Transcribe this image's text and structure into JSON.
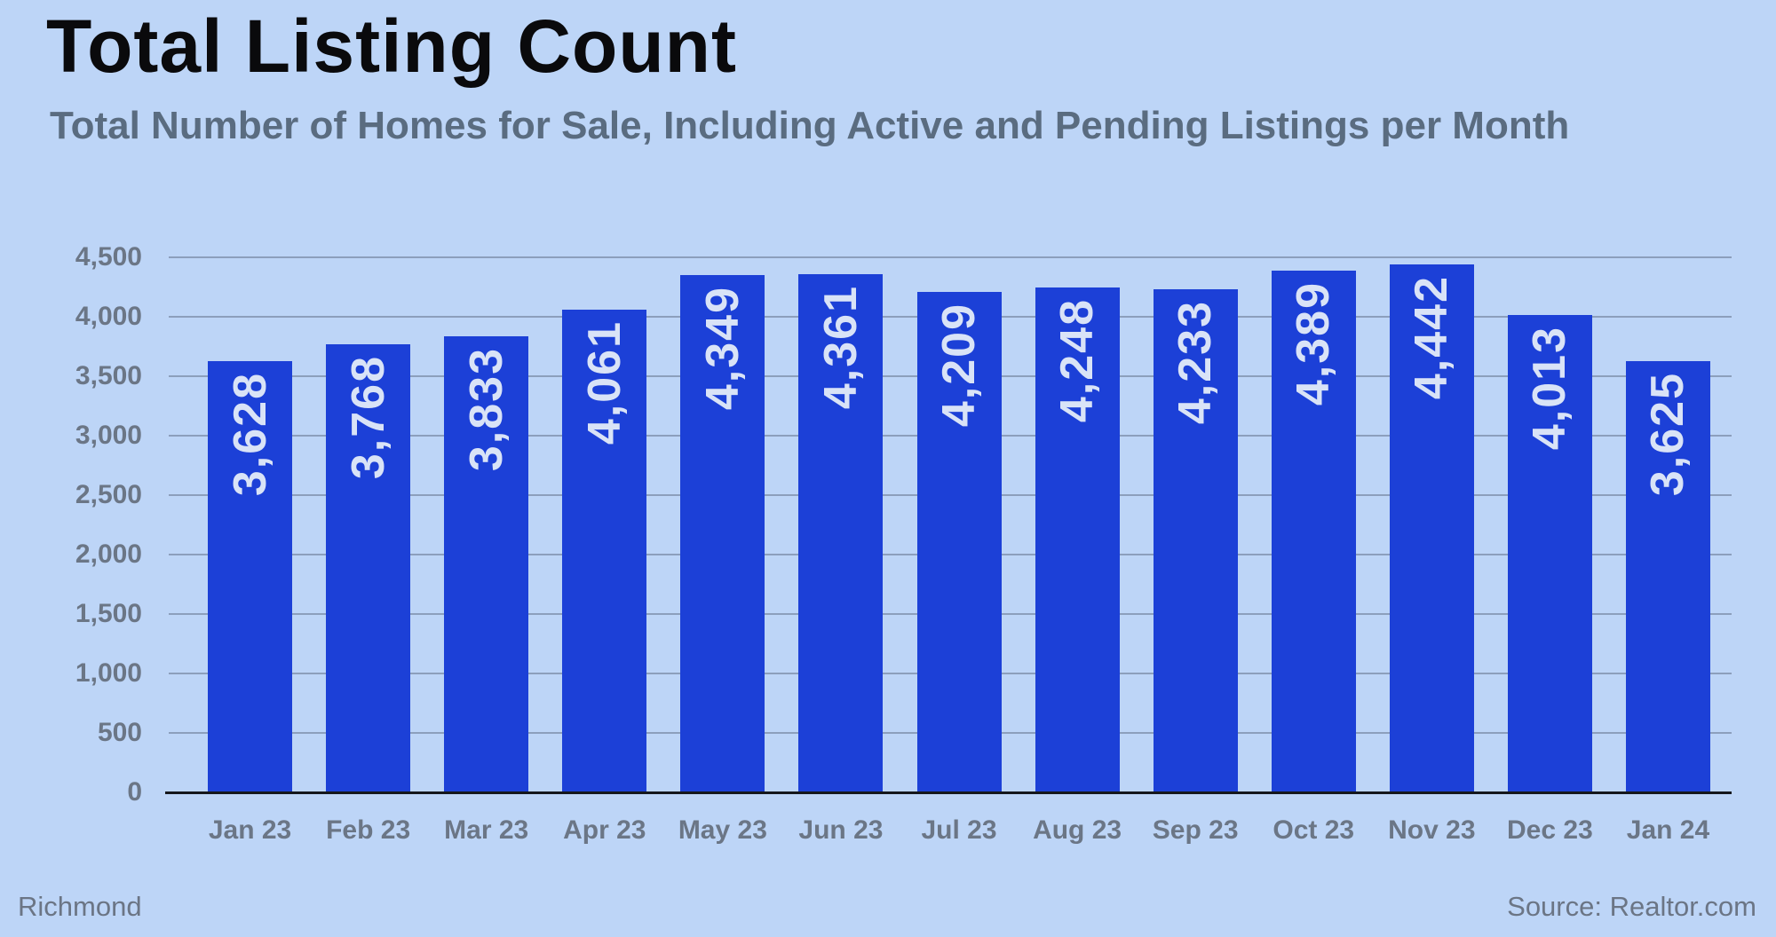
{
  "header": {
    "title": "Total Listing Count",
    "subtitle": "Total Number of Homes for Sale, Including Active and Pending Listings per Month"
  },
  "footer": {
    "location": "Richmond",
    "source": "Source: Realtor.com"
  },
  "colors": {
    "background": "#bdd5f7",
    "bar": "#1c40d7",
    "bar_label": "#d9e3f7",
    "gridline": "#64738c",
    "axis_line": "#15171c",
    "tick_text": "#6b7686",
    "title_text": "#0a0a0c",
    "subtitle_text": "#5a6c80",
    "footer_text": "#6b7585"
  },
  "chart_data": {
    "type": "bar",
    "title": "Total Listing Count",
    "subtitle": "Total Number of Homes for Sale, Including Active and Pending Listings per Month",
    "categories": [
      "Jan 23",
      "Feb 23",
      "Mar 23",
      "Apr 23",
      "May 23",
      "Jun 23",
      "Jul 23",
      "Aug 23",
      "Sep 23",
      "Oct 23",
      "Nov 23",
      "Dec 23",
      "Jan 24"
    ],
    "values": [
      3628,
      3768,
      3833,
      4061,
      4349,
      4361,
      4209,
      4248,
      4233,
      4389,
      4442,
      4013,
      3625
    ],
    "value_labels": [
      "3,628",
      "3,768",
      "3,833",
      "4,061",
      "4,349",
      "4,361",
      "4,209",
      "4,248",
      "4,233",
      "4,389",
      "4,442",
      "4,013",
      "3,625"
    ],
    "xlabel": "",
    "ylabel": "",
    "ylim": [
      0,
      4500
    ],
    "ytick_interval": 500,
    "ytick_labels": [
      "0",
      "500",
      "1,000",
      "1,500",
      "2,000",
      "2,500",
      "3,000",
      "3,500",
      "4,000",
      "4,500"
    ],
    "grid": true,
    "legend": false,
    "bar_label_rotation": -90,
    "bar_label_position": "inside-top"
  }
}
